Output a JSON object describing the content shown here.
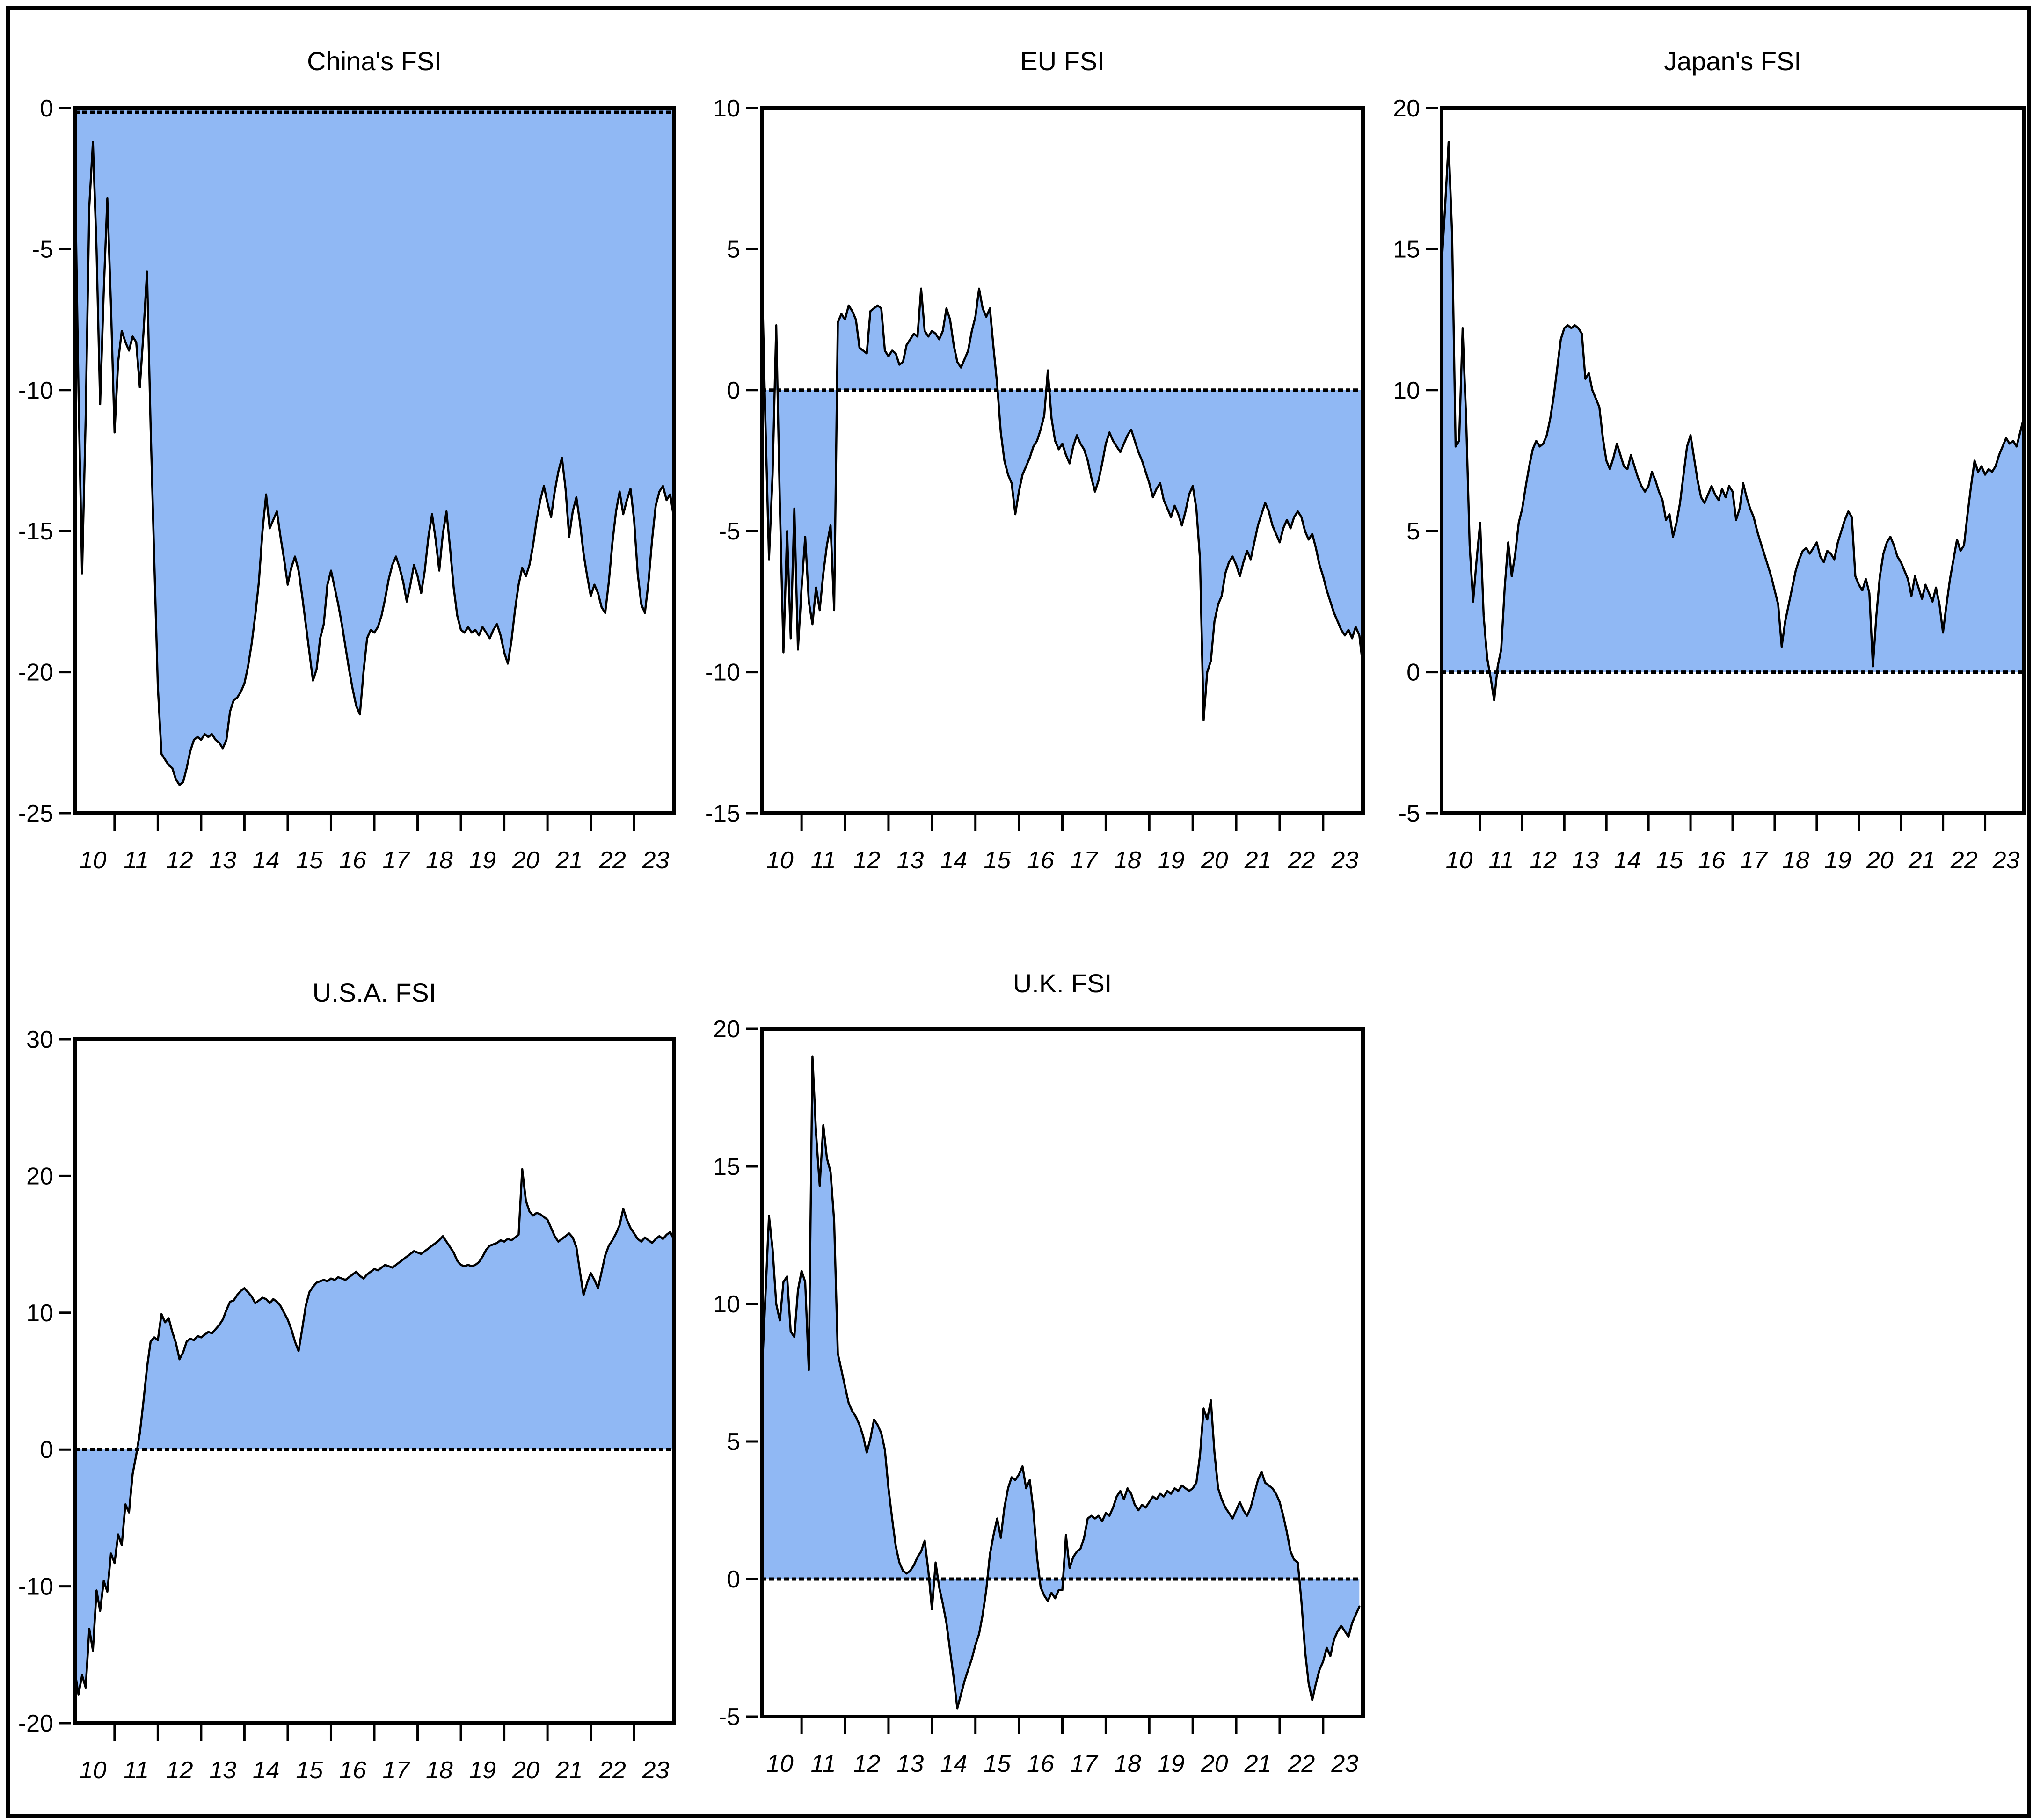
{
  "figure": {
    "background": "#ffffff",
    "border_color": "#000000",
    "fill_color": "#90b8f4",
    "line_color": "#000000",
    "layout": "2 rows: China's FSI, EU FSI, Japan's FSI on top; U.S.A. FSI, U.K. FSI on bottom"
  },
  "chart_data": [
    {
      "type": "area",
      "title": "China's FSI",
      "xlabel": "",
      "ylabel": "",
      "x_start": 2009.5833,
      "x_step": 0.08333,
      "xlim": [
        2009.5833,
        2023.4167
      ],
      "ylim": [
        -25,
        0
      ],
      "y_ticks": [
        0,
        -5,
        -10,
        -15,
        -20,
        -25
      ],
      "x_tick_years": [
        2010,
        2011,
        2012,
        2013,
        2014,
        2015,
        2016,
        2017,
        2018,
        2019,
        2020,
        2021,
        2022,
        2023
      ],
      "x_tick_labels": [
        "10",
        "11",
        "12",
        "13",
        "14",
        "15",
        "16",
        "17",
        "18",
        "19",
        "20",
        "21",
        "22",
        "23"
      ],
      "area_baseline": 0,
      "grid": false,
      "values": [
        -1.8,
        -10,
        -16.5,
        -11,
        -3.5,
        -1.2,
        -5,
        -10.5,
        -6.5,
        -3.2,
        -7,
        -11.5,
        -9,
        -7.9,
        -8.3,
        -8.6,
        -8.1,
        -8.3,
        -9.9,
        -8,
        -5.8,
        -11.3,
        -16,
        -20.5,
        -22.9,
        -23.1,
        -23.3,
        -23.4,
        -23.8,
        -24,
        -23.9,
        -23.4,
        -22.8,
        -22.4,
        -22.3,
        -22.4,
        -22.2,
        -22.3,
        -22.2,
        -22.4,
        -22.5,
        -22.7,
        -22.4,
        -21.4,
        -21,
        -20.9,
        -20.7,
        -20.4,
        -19.8,
        -19,
        -18,
        -16.8,
        -15,
        -13.7,
        -14.9,
        -14.6,
        -14.3,
        -15.2,
        -16,
        -16.9,
        -16.3,
        -15.9,
        -16.4,
        -17.3,
        -18.3,
        -19.3,
        -20.3,
        -19.9,
        -18.8,
        -18.3,
        -16.9,
        -16.4,
        -17,
        -17.6,
        -18.3,
        -19.1,
        -19.9,
        -20.6,
        -21.2,
        -21.5,
        -20,
        -18.8,
        -18.5,
        -18.6,
        -18.4,
        -18,
        -17.4,
        -16.7,
        -16.2,
        -15.9,
        -16.3,
        -16.8,
        -17.5,
        -16.9,
        -16.2,
        -16.6,
        -17.2,
        -16.4,
        -15.2,
        -14.4,
        -15.3,
        -16.4,
        -15.1,
        -14.3,
        -15.6,
        -17,
        -18,
        -18.5,
        -18.6,
        -18.4,
        -18.6,
        -18.5,
        -18.7,
        -18.4,
        -18.6,
        -18.8,
        -18.5,
        -18.3,
        -18.7,
        -19.3,
        -19.7,
        -18.9,
        -17.8,
        -16.9,
        -16.3,
        -16.6,
        -16.2,
        -15.5,
        -14.6,
        -13.9,
        -13.4,
        -14,
        -14.5,
        -13.6,
        -12.9,
        -12.4,
        -13.5,
        -15.2,
        -14.3,
        -13.8,
        -14.7,
        -15.8,
        -16.6,
        -17.3,
        -16.9,
        -17.2,
        -17.7,
        -17.9,
        -16.8,
        -15.4,
        -14.3,
        -13.6,
        -14.4,
        -13.9,
        -13.5,
        -14.6,
        -16.5,
        -17.6,
        -17.9,
        -16.8,
        -15.3,
        -14.1,
        -13.6,
        -13.4,
        -13.9,
        -13.7,
        -14.5
      ]
    },
    {
      "type": "area",
      "title": "EU FSI",
      "xlabel": "",
      "ylabel": "",
      "x_start": 2009.5833,
      "x_step": 0.08333,
      "xlim": [
        2009.5833,
        2023.4167
      ],
      "ylim": [
        -15,
        10
      ],
      "y_ticks": [
        10,
        5,
        0,
        -5,
        -10,
        -15
      ],
      "x_tick_years": [
        2010,
        2011,
        2012,
        2013,
        2014,
        2015,
        2016,
        2017,
        2018,
        2019,
        2020,
        2021,
        2022,
        2023
      ],
      "x_tick_labels": [
        "10",
        "11",
        "12",
        "13",
        "14",
        "15",
        "16",
        "17",
        "18",
        "19",
        "20",
        "21",
        "22",
        "23"
      ],
      "area_baseline": 0,
      "grid": false,
      "values": [
        4.5,
        -1,
        -6,
        -3,
        2.3,
        -4,
        -9.3,
        -5,
        -8.8,
        -4.2,
        -9.2,
        -7,
        -5.2,
        -7.5,
        -8.3,
        -7,
        -7.8,
        -6.5,
        -5.5,
        -4.8,
        -7.8,
        2.4,
        2.7,
        2.5,
        3,
        2.8,
        2.5,
        1.5,
        1.4,
        1.3,
        2.8,
        2.9,
        3,
        2.9,
        1.4,
        1.2,
        1.4,
        1.3,
        0.9,
        1,
        1.6,
        1.8,
        2,
        1.9,
        3.6,
        2.1,
        1.9,
        2.1,
        2,
        1.8,
        2.1,
        2.9,
        2.5,
        1.6,
        1,
        0.8,
        1.1,
        1.4,
        2.1,
        2.6,
        3.6,
        2.9,
        2.6,
        2.9,
        1.5,
        0.2,
        -1.5,
        -2.5,
        -3,
        -3.3,
        -4.4,
        -3.6,
        -3,
        -2.7,
        -2.4,
        -2,
        -1.8,
        -1.4,
        -0.9,
        0.7,
        -1,
        -1.8,
        -2.1,
        -1.9,
        -2.3,
        -2.6,
        -2,
        -1.6,
        -1.9,
        -2.1,
        -2.5,
        -3.1,
        -3.6,
        -3.2,
        -2.6,
        -1.9,
        -1.5,
        -1.8,
        -2,
        -2.2,
        -1.9,
        -1.6,
        -1.4,
        -1.8,
        -2.2,
        -2.5,
        -2.9,
        -3.3,
        -3.8,
        -3.5,
        -3.3,
        -3.9,
        -4.2,
        -4.5,
        -4.1,
        -4.4,
        -4.8,
        -4.3,
        -3.7,
        -3.4,
        -4.2,
        -6,
        -11.7,
        -10,
        -9.6,
        -8.2,
        -7.6,
        -7.3,
        -6.5,
        -6.1,
        -5.9,
        -6.2,
        -6.6,
        -6.1,
        -5.7,
        -6,
        -5.4,
        -4.8,
        -4.4,
        -4,
        -4.3,
        -4.8,
        -5.1,
        -5.4,
        -4.9,
        -4.6,
        -4.9,
        -4.5,
        -4.3,
        -4.5,
        -5,
        -5.3,
        -5.1,
        -5.6,
        -6.2,
        -6.6,
        -7.1,
        -7.5,
        -7.9,
        -8.2,
        -8.5,
        -8.7,
        -8.5,
        -8.8,
        -8.4,
        -8.7,
        -9.8
      ]
    },
    {
      "type": "area",
      "title": "Japan's FSI",
      "xlabel": "",
      "ylabel": "",
      "x_start": 2009.5833,
      "x_step": 0.08333,
      "xlim": [
        2009.5833,
        2023.4167
      ],
      "ylim": [
        -5,
        20
      ],
      "y_ticks": [
        20,
        15,
        10,
        5,
        0,
        -5
      ],
      "x_tick_years": [
        2010,
        2011,
        2012,
        2013,
        2014,
        2015,
        2016,
        2017,
        2018,
        2019,
        2020,
        2021,
        2022,
        2023
      ],
      "x_tick_labels": [
        "10",
        "11",
        "12",
        "13",
        "14",
        "15",
        "16",
        "17",
        "18",
        "19",
        "20",
        "21",
        "22",
        "23"
      ],
      "area_baseline": 0,
      "grid": false,
      "values": [
        14.4,
        16.5,
        18.8,
        15.5,
        8,
        8.2,
        12.2,
        9,
        4.5,
        2.5,
        4,
        5.3,
        2,
        0.5,
        -0.2,
        -1,
        0.2,
        0.8,
        3,
        4.6,
        3.4,
        4.2,
        5.3,
        5.8,
        6.6,
        7.3,
        7.9,
        8.2,
        8,
        8.1,
        8.4,
        9,
        9.8,
        10.8,
        11.8,
        12.2,
        12.3,
        12.2,
        12.3,
        12.2,
        12,
        10.4,
        10.6,
        10,
        9.7,
        9.4,
        8.3,
        7.5,
        7.2,
        7.6,
        8.1,
        7.7,
        7.3,
        7.2,
        7.7,
        7.3,
        6.9,
        6.6,
        6.4,
        6.6,
        7.1,
        6.8,
        6.4,
        6.1,
        5.4,
        5.6,
        4.8,
        5.3,
        6,
        7,
        8,
        8.4,
        7.6,
        6.8,
        6.2,
        6,
        6.3,
        6.6,
        6.3,
        6.1,
        6.5,
        6.2,
        6.6,
        6.4,
        5.4,
        5.8,
        6.7,
        6.2,
        5.8,
        5.5,
        5,
        4.6,
        4.2,
        3.8,
        3.4,
        2.9,
        2.4,
        0.9,
        1.8,
        2.4,
        3,
        3.6,
        4,
        4.3,
        4.4,
        4.2,
        4.4,
        4.6,
        4.1,
        3.9,
        4.3,
        4.2,
        4,
        4.6,
        5,
        5.4,
        5.7,
        5.5,
        3.4,
        3.1,
        2.9,
        3.3,
        2.8,
        0.2,
        2,
        3.4,
        4.2,
        4.6,
        4.8,
        4.5,
        4.1,
        3.9,
        3.6,
        3.3,
        2.7,
        3.4,
        3,
        2.6,
        3.1,
        2.8,
        2.5,
        3,
        2.4,
        1.4,
        2.4,
        3.3,
        4,
        4.7,
        4.3,
        4.5,
        5.6,
        6.6,
        7.5,
        7.1,
        7.3,
        7,
        7.2,
        7.1,
        7.3,
        7.7,
        8,
        8.3,
        8.1,
        8.2,
        8,
        8.5,
        9
      ]
    },
    {
      "type": "area",
      "title": "U.S.A. FSI",
      "xlabel": "",
      "ylabel": "",
      "x_start": 2009.5833,
      "x_step": 0.08333,
      "xlim": [
        2009.5833,
        2023.4167
      ],
      "ylim": [
        -20,
        30
      ],
      "y_ticks": [
        30,
        20,
        10,
        0,
        -10,
        -20
      ],
      "x_tick_years": [
        2010,
        2011,
        2012,
        2013,
        2014,
        2015,
        2016,
        2017,
        2018,
        2019,
        2020,
        2021,
        2022,
        2023
      ],
      "x_tick_labels": [
        "10",
        "11",
        "12",
        "13",
        "14",
        "15",
        "16",
        "17",
        "18",
        "19",
        "20",
        "21",
        "22",
        "23"
      ],
      "area_baseline": 0,
      "grid": false,
      "values": [
        -16.2,
        -17.9,
        -16.5,
        -17.4,
        -13.1,
        -14.7,
        -10.3,
        -11.8,
        -9.6,
        -10.4,
        -7.6,
        -8.3,
        -6.2,
        -7,
        -4,
        -4.6,
        -1.8,
        -0.4,
        1.2,
        3.5,
        6,
        7.9,
        8.2,
        8,
        9.9,
        9.3,
        9.6,
        8.6,
        7.8,
        6.6,
        7.1,
        7.9,
        8.1,
        8,
        8.3,
        8.2,
        8.4,
        8.6,
        8.5,
        8.8,
        9.1,
        9.5,
        10.2,
        10.8,
        10.9,
        11.3,
        11.6,
        11.8,
        11.5,
        11.2,
        10.7,
        10.9,
        11.1,
        11,
        10.7,
        11,
        10.8,
        10.5,
        10,
        9.5,
        8.8,
        7.9,
        7.2,
        8.8,
        10.5,
        11.5,
        11.9,
        12.2,
        12.3,
        12.4,
        12.3,
        12.5,
        12.4,
        12.6,
        12.5,
        12.4,
        12.6,
        12.8,
        13,
        12.7,
        12.5,
        12.8,
        13,
        13.2,
        13.1,
        13.3,
        13.5,
        13.4,
        13.3,
        13.5,
        13.7,
        13.9,
        14.1,
        14.3,
        14.5,
        14.4,
        14.3,
        14.5,
        14.7,
        14.9,
        15.1,
        15.3,
        15.6,
        15.2,
        14.8,
        14.4,
        13.8,
        13.5,
        13.4,
        13.5,
        13.4,
        13.5,
        13.7,
        14.1,
        14.6,
        14.9,
        15,
        15.1,
        15.3,
        15.2,
        15.4,
        15.3,
        15.5,
        15.7,
        20.5,
        18.2,
        17.4,
        17.1,
        17.3,
        17.2,
        17,
        16.8,
        16.2,
        15.6,
        15.2,
        15.4,
        15.6,
        15.8,
        15.5,
        14.8,
        13,
        11.3,
        12.2,
        12.9,
        12.4,
        11.8,
        13,
        14.2,
        14.9,
        15.3,
        15.8,
        16.4,
        17.6,
        16.8,
        16.2,
        15.8,
        15.4,
        15.2,
        15.5,
        15.3,
        15.1,
        15.4,
        15.6,
        15.4,
        15.7,
        15.9,
        15.4
      ]
    },
    {
      "type": "area",
      "title": "U.K. FSI",
      "xlabel": "",
      "ylabel": "",
      "x_start": 2009.5833,
      "x_step": 0.08333,
      "xlim": [
        2009.5833,
        2023.4167
      ],
      "ylim": [
        -5,
        20
      ],
      "y_ticks": [
        20,
        15,
        10,
        5,
        0,
        -5
      ],
      "x_tick_years": [
        2010,
        2011,
        2012,
        2013,
        2014,
        2015,
        2016,
        2017,
        2018,
        2019,
        2020,
        2021,
        2022,
        2023
      ],
      "x_tick_labels": [
        "10",
        "11",
        "12",
        "13",
        "14",
        "15",
        "16",
        "17",
        "18",
        "19",
        "20",
        "21",
        "22",
        "23"
      ],
      "area_baseline": 0,
      "grid": false,
      "values": [
        7.3,
        10.2,
        13.2,
        12,
        10,
        9.4,
        10.8,
        11,
        9,
        8.8,
        10.5,
        11.2,
        10.8,
        7.6,
        19,
        16.2,
        14.3,
        16.5,
        15.3,
        14.8,
        13,
        8.2,
        7.6,
        7,
        6.4,
        6.1,
        5.9,
        5.6,
        5.2,
        4.6,
        5.1,
        5.8,
        5.6,
        5.3,
        4.7,
        3.3,
        2.2,
        1.2,
        0.6,
        0.3,
        0.2,
        0.3,
        0.5,
        0.8,
        1,
        1.4,
        0.3,
        -1.1,
        0.6,
        -0.3,
        -0.9,
        -1.6,
        -2.6,
        -3.6,
        -4.7,
        -4.2,
        -3.7,
        -3.3,
        -2.9,
        -2.4,
        -2,
        -1.3,
        -0.4,
        0.9,
        1.6,
        2.2,
        1.5,
        2.6,
        3.3,
        3.7,
        3.6,
        3.8,
        4.1,
        3.3,
        3.6,
        2.5,
        0.8,
        -0.3,
        -0.6,
        -0.8,
        -0.5,
        -0.7,
        -0.4,
        -0.4,
        1.6,
        0.4,
        0.8,
        1,
        1.1,
        1.5,
        2.2,
        2.3,
        2.2,
        2.3,
        2.1,
        2.4,
        2.3,
        2.6,
        3,
        3.2,
        2.9,
        3.3,
        3.1,
        2.7,
        2.5,
        2.7,
        2.6,
        2.8,
        3,
        2.9,
        3.1,
        3,
        3.2,
        3.1,
        3.3,
        3.2,
        3.4,
        3.3,
        3.2,
        3.3,
        3.5,
        4.5,
        6.2,
        5.8,
        6.5,
        4.6,
        3.3,
        2.9,
        2.6,
        2.4,
        2.2,
        2.5,
        2.8,
        2.5,
        2.3,
        2.6,
        3.1,
        3.6,
        3.9,
        3.5,
        3.4,
        3.3,
        3.1,
        2.8,
        2.3,
        1.7,
        1,
        0.7,
        0.6,
        -0.8,
        -2.6,
        -3.8,
        -4.4,
        -3.8,
        -3.3,
        -3,
        -2.5,
        -2.8,
        -2.2,
        -1.9,
        -1.7,
        -1.9,
        -2.1,
        -1.6,
        -1.3,
        -1
      ]
    }
  ]
}
